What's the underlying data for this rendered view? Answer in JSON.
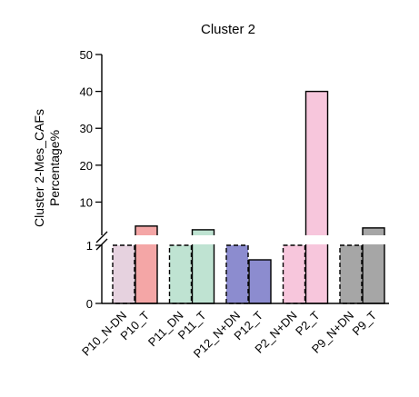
{
  "chart_data": {
    "type": "bar",
    "title": "Cluster 2",
    "ylabel": [
      "Cluster 2-Mes_CAFs",
      "Percentage%"
    ],
    "xlabel": "",
    "categories": [
      "P10_N-DN",
      "P10_T",
      "P11_DN",
      "P11_T",
      "P12_N+DN",
      "P12_T",
      "P2_N+DN",
      "P2_T",
      "P9_N+DN",
      "P9_T"
    ],
    "values": [
      1,
      3.5,
      1,
      2.5,
      1,
      0.75,
      1,
      40,
      1,
      3
    ],
    "bar_colors": [
      "#e6d2df",
      "#f4a6a6",
      "#bfe3d2",
      "#bfe3d2",
      "#8c8ccf",
      "#8c8ccf",
      "#f7c6dc",
      "#f7c6dc",
      "#a6a6a6",
      "#a6a6a6"
    ],
    "bar_dashed": [
      true,
      false,
      true,
      false,
      true,
      false,
      true,
      false,
      true,
      false
    ],
    "y_axis": {
      "broken": true,
      "lower_segment": {
        "range": [
          0,
          1
        ],
        "ticks": [
          0,
          1
        ]
      },
      "upper_segment": {
        "range": [
          1,
          50
        ],
        "ticks": [
          10,
          20,
          30,
          40,
          50
        ]
      }
    },
    "tick_labels": [
      "0",
      "1",
      "10",
      "20",
      "30",
      "40",
      "50"
    ],
    "grid": false,
    "legend": "none"
  }
}
